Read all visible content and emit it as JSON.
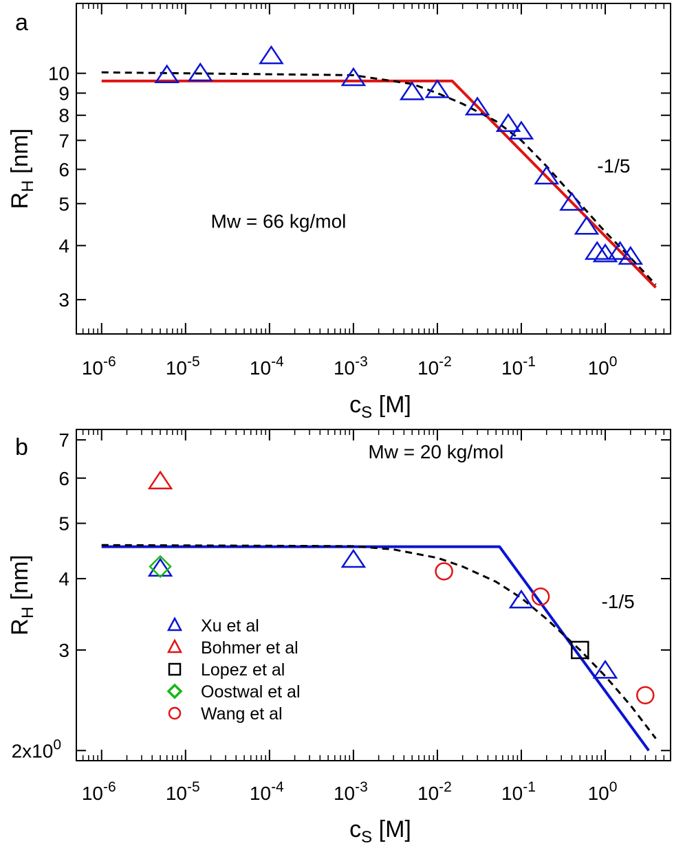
{
  "chart_data": [
    {
      "type": "scatter",
      "panel_label": "a",
      "xlabel": "c",
      "xlabel_sub": "S",
      "xlabel_unit": " [M]",
      "ylabel": "R",
      "ylabel_sub": "H",
      "ylabel_unit": " [nm]",
      "xscale": "log",
      "yscale": "log",
      "xlim": [
        5e-07,
        6
      ],
      "ylim": [
        2.5,
        14.5
      ],
      "x_ticks": [
        {
          "value": 1e-06,
          "base": "10",
          "exp": "-6"
        },
        {
          "value": 1e-05,
          "base": "10",
          "exp": "-5"
        },
        {
          "value": 0.0001,
          "base": "10",
          "exp": "-4"
        },
        {
          "value": 0.001,
          "base": "10",
          "exp": "-3"
        },
        {
          "value": 0.01,
          "base": "10",
          "exp": "-2"
        },
        {
          "value": 0.1,
          "base": "10",
          "exp": "-1"
        },
        {
          "value": 1,
          "base": "10",
          "exp": "0"
        }
      ],
      "y_ticks": [
        {
          "value": 3,
          "label": "3"
        },
        {
          "value": 4,
          "label": "4"
        },
        {
          "value": 5,
          "label": "5"
        },
        {
          "value": 6,
          "label": "6"
        },
        {
          "value": 7,
          "label": "7"
        },
        {
          "value": 8,
          "label": "8"
        },
        {
          "value": 9,
          "label": "9"
        },
        {
          "value": 10,
          "label": "10"
        }
      ],
      "annotations": [
        {
          "text": "Mw = 66 kg/mol",
          "x": 2e-05,
          "y": 4.4
        },
        {
          "text": "-1/5",
          "x": 0.8,
          "y": 5.9
        }
      ],
      "series": [
        {
          "marker": "triangle",
          "color": "#0a14d2",
          "x": [
            6e-06,
            1.5e-05,
            0.000105,
            0.001,
            0.005,
            0.01,
            0.03,
            0.07,
            0.1,
            0.2,
            0.4,
            0.6,
            0.8,
            1.0,
            1.5,
            2.0
          ],
          "y": [
            9.85,
            9.95,
            10.9,
            9.7,
            9.0,
            9.1,
            8.3,
            7.6,
            7.3,
            5.75,
            5.0,
            4.4,
            3.85,
            3.8,
            3.85,
            3.75
          ]
        },
        {
          "line": "solid",
          "color": "#e01414",
          "x": [
            1e-06,
            0.015,
            4.0
          ],
          "y": [
            9.6,
            9.6,
            3.2
          ]
        },
        {
          "line": "dashed",
          "color": "#000000",
          "x": [
            1e-06,
            0.001,
            0.005,
            0.01,
            0.02,
            0.05,
            0.1,
            0.2,
            0.5,
            1.0,
            2.0,
            4.0
          ],
          "y": [
            10.05,
            9.9,
            9.45,
            9.0,
            8.5,
            7.75,
            7.0,
            6.1,
            5.0,
            4.3,
            3.75,
            3.25
          ]
        }
      ]
    },
    {
      "type": "scatter",
      "panel_label": "b",
      "xlabel": "c",
      "xlabel_sub": "S",
      "xlabel_unit": " [M]",
      "ylabel": "R",
      "ylabel_sub": "H",
      "ylabel_unit": " [nm]",
      "xscale": "log",
      "yscale": "log",
      "xlim": [
        5e-07,
        6
      ],
      "ylim": [
        1.92,
        7.3
      ],
      "x_ticks": [
        {
          "value": 1e-06,
          "base": "10",
          "exp": "-6"
        },
        {
          "value": 1e-05,
          "base": "10",
          "exp": "-5"
        },
        {
          "value": 0.0001,
          "base": "10",
          "exp": "-4"
        },
        {
          "value": 0.001,
          "base": "10",
          "exp": "-3"
        },
        {
          "value": 0.01,
          "base": "10",
          "exp": "-2"
        },
        {
          "value": 0.1,
          "base": "10",
          "exp": "-1"
        },
        {
          "value": 1,
          "base": "10",
          "exp": "0"
        }
      ],
      "y_ticks": [
        {
          "value": 2,
          "label": "2x10",
          "exp": "0"
        },
        {
          "value": 3,
          "label": "3"
        },
        {
          "value": 4,
          "label": "4"
        },
        {
          "value": 5,
          "label": "5"
        },
        {
          "value": 6,
          "label": "6"
        },
        {
          "value": 7,
          "label": "7"
        }
      ],
      "annotations": [
        {
          "text": "Mw = 20 kg/mol",
          "x": 0.0015,
          "y": 6.5
        },
        {
          "text": "-1/5",
          "x": 0.9,
          "y": 3.55
        }
      ],
      "series": [
        {
          "name": "Xu et al",
          "marker": "triangle",
          "color": "#0a14d2",
          "x": [
            5e-06,
            0.001,
            0.1,
            1.0
          ],
          "y": [
            4.15,
            4.3,
            3.65,
            2.75
          ]
        },
        {
          "name": "Bohmer et al",
          "marker": "triangle",
          "color": "#e01414",
          "x": [
            5e-06
          ],
          "y": [
            5.9
          ]
        },
        {
          "name": "Lopez et al",
          "marker": "square",
          "color": "#000000",
          "x": [
            0.5
          ],
          "y": [
            3.0
          ]
        },
        {
          "name": "Oostwal et al",
          "marker": "diamond",
          "color": "#18b818",
          "x": [
            5e-06
          ],
          "y": [
            4.2
          ]
        },
        {
          "name": "Wang et al",
          "marker": "circle",
          "color": "#e01414",
          "x": [
            0.012,
            0.17,
            3.0
          ],
          "y": [
            4.12,
            3.72,
            2.5
          ]
        },
        {
          "line": "solid",
          "color": "#0a14d2",
          "x": [
            1e-06,
            0.055,
            3.3
          ],
          "y": [
            4.55,
            4.55,
            2.0
          ]
        },
        {
          "line": "dashed",
          "color": "#000000",
          "x": [
            1e-06,
            0.001,
            0.003,
            0.01,
            0.02,
            0.05,
            0.1,
            0.2,
            0.5,
            1.0,
            2.0,
            4.0
          ],
          "y": [
            4.58,
            4.56,
            4.5,
            4.35,
            4.2,
            3.95,
            3.7,
            3.4,
            3.0,
            2.7,
            2.4,
            2.1
          ]
        }
      ],
      "legend": {
        "placement": "bottom-left",
        "entries": [
          {
            "label": "Xu et al",
            "marker": "triangle",
            "color": "#0a14d2"
          },
          {
            "label": "Bohmer et al",
            "marker": "triangle",
            "color": "#e01414"
          },
          {
            "label": "Lopez et al",
            "marker": "square",
            "color": "#000000"
          },
          {
            "label": "Oostwal et al",
            "marker": "diamond",
            "color": "#18b818"
          },
          {
            "label": "Wang et al",
            "marker": "circle",
            "color": "#e01414"
          }
        ]
      }
    }
  ]
}
